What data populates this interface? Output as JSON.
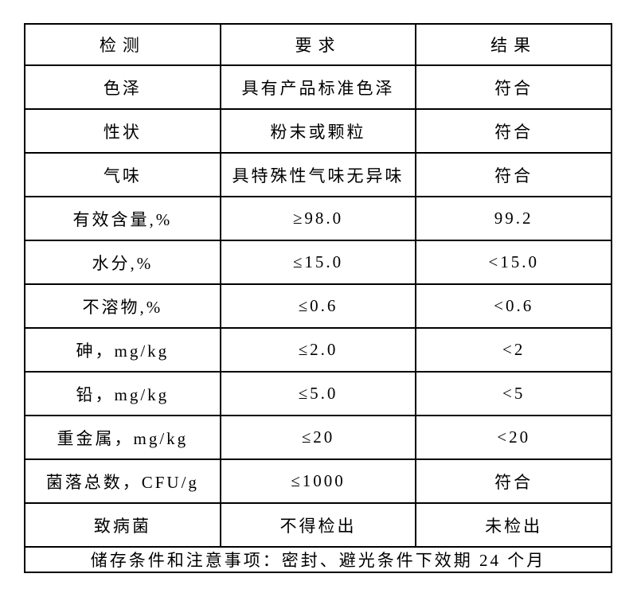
{
  "table": {
    "columns": [
      "检测",
      "要求",
      "结果"
    ],
    "rows": [
      {
        "item": "色泽",
        "requirement": "具有产品标准色泽",
        "result": "符合"
      },
      {
        "item": "性状",
        "requirement": "粉末或颗粒",
        "result": "符合"
      },
      {
        "item": "气味",
        "requirement": "具特殊性气味无异味",
        "result": "符合"
      },
      {
        "item": "有效含量,%",
        "requirement": "≥98.0",
        "result": "99.2"
      },
      {
        "item": "水分,%",
        "requirement": "≤15.0",
        "result": "<15.0"
      },
      {
        "item": "不溶物,%",
        "requirement": "≤0.6",
        "result": "<0.6"
      },
      {
        "item": "砷，mg/kg",
        "requirement": "≤2.0",
        "result": "<2"
      },
      {
        "item": "铅，mg/kg",
        "requirement": "≤5.0",
        "result": "<5"
      },
      {
        "item": "重金属，mg/kg",
        "requirement": "≤20",
        "result": "<20"
      },
      {
        "item": "菌落总数，CFU/g",
        "requirement": "≤1000",
        "result": "符合"
      },
      {
        "item": "致病菌",
        "requirement": "不得检出",
        "result": "未检出"
      }
    ],
    "footer_note": "储存条件和注意事项：密封、避光条件下效期 24 个月",
    "border_color": "#000000",
    "text_color": "#000000",
    "background_color": "#ffffff"
  }
}
